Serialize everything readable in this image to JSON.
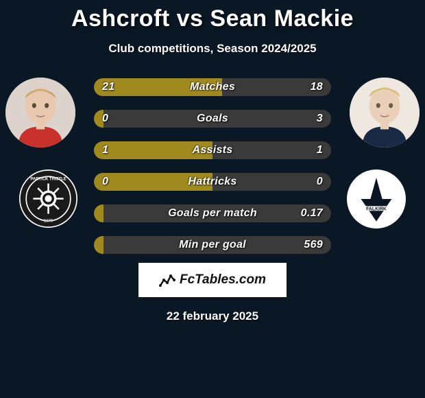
{
  "title": "Ashcroft vs Sean Mackie",
  "subtitle": "Club competitions, Season 2024/2025",
  "footer_date": "22 february 2025",
  "brand": "FcTables.com",
  "colors": {
    "background": "#0a1826",
    "bar_left": "#a08a1f",
    "bar_right": "#3a3a3a",
    "bar_left_fill": "#8f7c1c",
    "text": "#ffffff"
  },
  "bars": [
    {
      "label": "Matches",
      "left": "21",
      "right": "18",
      "left_pct": 54
    },
    {
      "label": "Goals",
      "left": "0",
      "right": "3",
      "left_pct": 4
    },
    {
      "label": "Assists",
      "left": "1",
      "right": "1",
      "left_pct": 50
    },
    {
      "label": "Hattricks",
      "left": "0",
      "right": "0",
      "left_pct": 50
    },
    {
      "label": "Goals per match",
      "left": "",
      "right": "0.17",
      "left_pct": 4
    },
    {
      "label": "Min per goal",
      "left": "",
      "right": "569",
      "left_pct": 4
    }
  ],
  "players": {
    "left": {
      "name": "Ashcroft",
      "club": "Partick Thistle"
    },
    "right": {
      "name": "Sean Mackie",
      "club": "Falkirk"
    }
  }
}
